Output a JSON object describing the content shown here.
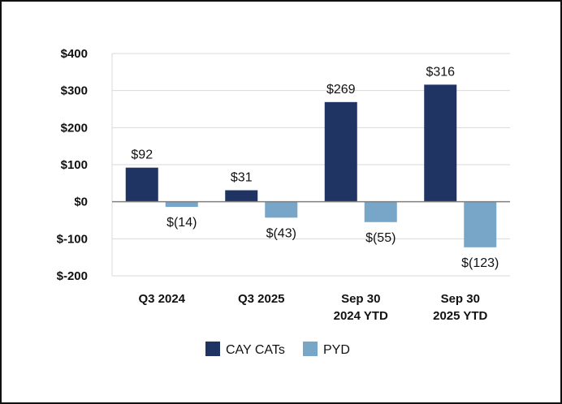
{
  "chart_data": {
    "type": "bar",
    "categories": [
      [
        "Q3 2024"
      ],
      [
        "Q3 2025"
      ],
      [
        "Sep 30",
        "2024 YTD"
      ],
      [
        "Sep 30",
        "2025 YTD"
      ]
    ],
    "series": [
      {
        "name": "CAY CATs",
        "color": "#1f3463",
        "values": [
          92,
          31,
          269,
          316
        ],
        "labels": [
          "$92",
          "$31",
          "$269",
          "$316"
        ]
      },
      {
        "name": "PYD",
        "color": "#77a6c8",
        "values": [
          -14,
          -43,
          -55,
          -123
        ],
        "labels": [
          "$(14)",
          "$(43)",
          "$(55)",
          "$(123)"
        ]
      }
    ],
    "yticks": [
      400,
      300,
      200,
      100,
      0,
      -100,
      -200
    ],
    "ytick_labels": [
      "$400",
      "$300",
      "$200",
      "$100",
      "$0",
      "$-100",
      "$-200"
    ],
    "ylim": [
      -200,
      400
    ],
    "grid": true,
    "legend_position": "bottom"
  }
}
